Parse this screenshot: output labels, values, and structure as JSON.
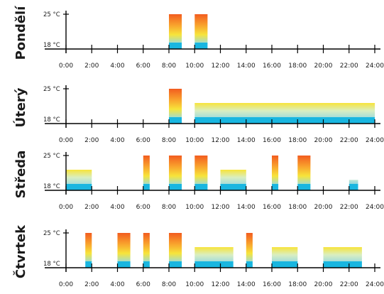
{
  "chart_data": {
    "type": "bar",
    "temp_unit": "°C",
    "temp_labels": [
      "25 °C",
      "18 °C"
    ],
    "ylim": [
      18,
      25
    ],
    "xlim": [
      0,
      24
    ],
    "x_ticks": [
      "0:00",
      "2:00",
      "4:00",
      "6:00",
      "8:00",
      "10:00",
      "12:00",
      "14:00",
      "16:00",
      "18:00",
      "20:00",
      "22:00",
      "24:00"
    ],
    "colors": {
      "hot": "#f25c1f",
      "warm": "#f7e43a",
      "cool": "#19b6e0",
      "axis": "#000000"
    },
    "days": [
      {
        "name": "Pondělí",
        "segments": [
          {
            "start": 8.0,
            "end": 9.0,
            "temp": 25
          },
          {
            "start": 10.0,
            "end": 11.0,
            "temp": 25
          }
        ]
      },
      {
        "name": "Úterý",
        "segments": [
          {
            "start": 8.0,
            "end": 9.0,
            "temp": 25
          },
          {
            "start": 10.0,
            "end": 24.0,
            "temp": 21.5
          }
        ]
      },
      {
        "name": "Středa",
        "segments": [
          {
            "start": 0.0,
            "end": 2.0,
            "temp": 21.5
          },
          {
            "start": 6.0,
            "end": 6.5,
            "temp": 25
          },
          {
            "start": 8.0,
            "end": 9.0,
            "temp": 25
          },
          {
            "start": 10.0,
            "end": 11.0,
            "temp": 25
          },
          {
            "start": 12.0,
            "end": 14.0,
            "temp": 21.5
          },
          {
            "start": 16.0,
            "end": 16.5,
            "temp": 25
          },
          {
            "start": 18.0,
            "end": 19.0,
            "temp": 25
          },
          {
            "start": 22.0,
            "end": 22.7,
            "temp": 19
          }
        ]
      },
      {
        "name": "Čtvrtek",
        "segments": [
          {
            "start": 1.5,
            "end": 2.0,
            "temp": 25
          },
          {
            "start": 4.0,
            "end": 5.0,
            "temp": 25
          },
          {
            "start": 6.0,
            "end": 6.5,
            "temp": 25
          },
          {
            "start": 8.0,
            "end": 9.0,
            "temp": 25
          },
          {
            "start": 10.0,
            "end": 13.0,
            "temp": 21.5
          },
          {
            "start": 14.0,
            "end": 14.5,
            "temp": 25
          },
          {
            "start": 16.0,
            "end": 18.0,
            "temp": 21.5
          },
          {
            "start": 20.0,
            "end": 23.0,
            "temp": 21.5
          }
        ]
      }
    ]
  }
}
